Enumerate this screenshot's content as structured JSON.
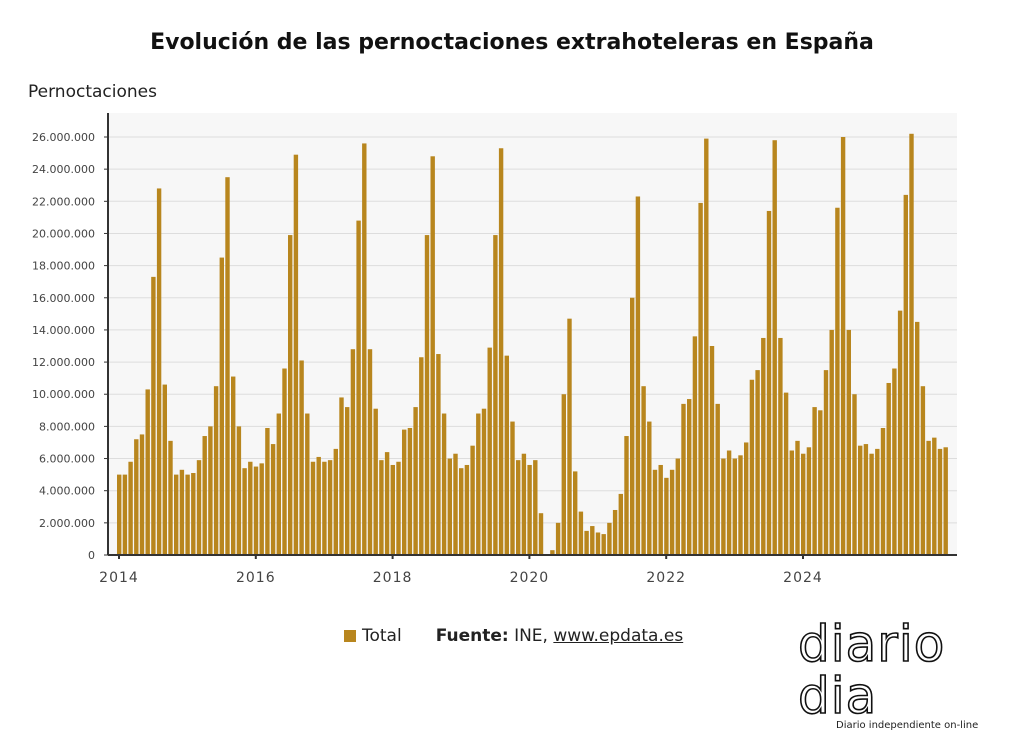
{
  "title": "Evolución de las pernoctaciones extrahoteleras en España",
  "legend": {
    "series_label": "Total",
    "source_label": "Fuente:",
    "source_text": "INE,",
    "source_link": "www.epdata.es"
  },
  "logo": {
    "main": "diario dia",
    "sub": "Diario independiente on-line"
  },
  "colors": {
    "bar": "#b8861e",
    "plot_bg": "#f7f7f7",
    "grid": "#dddddd"
  },
  "chart_data": {
    "type": "bar",
    "title": "Evolución de las pernoctaciones extrahoteleras en España",
    "ylabel": "Pernoctaciones",
    "xlabel": "",
    "start_month": "2014-01",
    "frequency": "monthly",
    "ylim": [
      0,
      27000000
    ],
    "yticks": [
      "0",
      "2.000.000",
      "4.000.000",
      "6.000.000",
      "8.000.000",
      "10.000.000",
      "12.000.000",
      "14.000.000",
      "16.000.000",
      "18.000.000",
      "20.000.000",
      "22.000.000",
      "24.000.000",
      "26.000.000"
    ],
    "xticks": [
      "2014",
      "2016",
      "2018",
      "2020",
      "2022",
      "2024"
    ],
    "grid": true,
    "legend_position": "bottom",
    "series": [
      {
        "name": "Total",
        "values_millions": [
          5.0,
          5.0,
          5.8,
          7.2,
          7.5,
          10.3,
          17.3,
          22.8,
          10.6,
          7.1,
          5.0,
          5.3,
          5.0,
          5.1,
          5.9,
          7.4,
          8.0,
          10.5,
          18.5,
          23.5,
          11.1,
          8.0,
          5.4,
          5.8,
          5.5,
          5.7,
          7.9,
          6.9,
          8.8,
          11.6,
          19.9,
          24.9,
          12.1,
          8.8,
          5.8,
          6.1,
          5.8,
          5.9,
          6.6,
          9.8,
          9.2,
          12.8,
          20.8,
          25.6,
          12.8,
          9.1,
          5.9,
          6.4,
          5.6,
          5.8,
          7.8,
          7.9,
          9.2,
          12.3,
          19.9,
          24.8,
          12.5,
          8.8,
          6.0,
          6.3,
          5.4,
          5.6,
          6.8,
          8.8,
          9.1,
          12.9,
          19.9,
          25.3,
          12.4,
          8.3,
          5.9,
          6.3,
          5.6,
          5.9,
          2.6,
          0.05,
          0.3,
          2.0,
          10.0,
          14.7,
          5.2,
          2.7,
          1.5,
          1.8,
          1.4,
          1.3,
          2.0,
          2.8,
          3.8,
          7.4,
          16.0,
          22.3,
          10.5,
          8.3,
          5.3,
          5.6,
          4.8,
          5.3,
          6.0,
          9.4,
          9.7,
          13.6,
          21.9,
          25.9,
          13.0,
          9.4,
          6.0,
          6.5,
          6.0,
          6.2,
          7.0,
          10.9,
          11.5,
          13.5,
          21.4,
          25.8,
          13.5,
          10.1,
          6.5,
          7.1,
          6.3,
          6.7,
          9.2,
          9.0,
          11.5,
          14.0,
          21.6,
          26.0,
          14.0,
          10.0,
          6.8,
          6.9,
          6.3,
          6.6,
          7.9,
          10.7,
          11.6,
          15.2,
          22.4,
          26.2,
          14.5,
          10.5,
          7.1,
          7.3,
          6.6,
          6.7
        ]
      }
    ]
  }
}
